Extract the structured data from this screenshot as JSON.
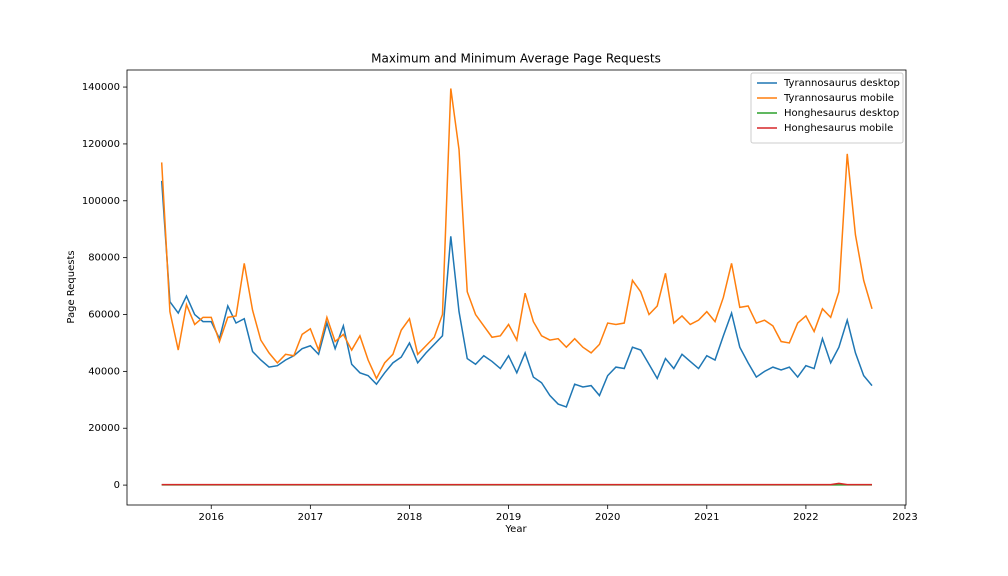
{
  "chart_data": {
    "type": "line",
    "title": "Maximum and Minimum Average Page Requests",
    "x_label": "Year",
    "y_label": "Page Requests",
    "x": [
      2015.5,
      2015.583,
      2015.667,
      2015.75,
      2015.833,
      2015.917,
      2016,
      2016.083,
      2016.167,
      2016.25,
      2016.333,
      2016.417,
      2016.5,
      2016.583,
      2016.667,
      2016.75,
      2016.833,
      2016.917,
      2017,
      2017.083,
      2017.167,
      2017.25,
      2017.333,
      2017.417,
      2017.5,
      2017.583,
      2017.667,
      2017.75,
      2017.833,
      2017.917,
      2018,
      2018.083,
      2018.167,
      2018.25,
      2018.333,
      2018.417,
      2018.5,
      2018.583,
      2018.667,
      2018.75,
      2018.833,
      2018.917,
      2019,
      2019.083,
      2019.167,
      2019.25,
      2019.333,
      2019.417,
      2019.5,
      2019.583,
      2019.667,
      2019.75,
      2019.833,
      2019.917,
      2020,
      2020.083,
      2020.167,
      2020.25,
      2020.333,
      2020.417,
      2020.5,
      2020.583,
      2020.667,
      2020.75,
      2020.833,
      2020.917,
      2021,
      2021.083,
      2021.167,
      2021.25,
      2021.333,
      2021.417,
      2021.5,
      2021.583,
      2021.667,
      2021.75,
      2021.833,
      2021.917,
      2022,
      2022.083,
      2022.167,
      2022.25,
      2022.333,
      2022.417,
      2022.5,
      2022.583,
      2022.667
    ],
    "series": [
      {
        "name": "Tyrannosaurus desktop",
        "color": "#1f77b4",
        "values": [
          107000,
          64500,
          60500,
          66500,
          60000,
          57500,
          57500,
          51500,
          63000,
          57000,
          58500,
          47000,
          44000,
          41500,
          42000,
          44000,
          45500,
          48000,
          49000,
          46000,
          57000,
          48000,
          56000,
          42500,
          39500,
          38500,
          35500,
          39500,
          43000,
          45000,
          50000,
          43000,
          46500,
          49500,
          52500,
          87500,
          61000,
          44500,
          42500,
          45500,
          43500,
          41000,
          45500,
          39500,
          46500,
          38000,
          36000,
          31500,
          28500,
          27500,
          35500,
          34500,
          35000,
          31500,
          38500,
          41500,
          41000,
          48500,
          47500,
          42500,
          37500,
          44500,
          41000,
          46000,
          43500,
          41000,
          45500,
          44000,
          52500,
          60500,
          48500,
          43000,
          38000,
          40000,
          41500,
          40500,
          41500,
          38000,
          42000,
          41000,
          51500,
          43000,
          48500,
          58000,
          46500,
          38500,
          35000
        ]
      },
      {
        "name": "Tyrannosaurus mobile",
        "color": "#ff7f0e",
        "values": [
          113500,
          61000,
          47500,
          63500,
          56500,
          59000,
          59000,
          50500,
          59000,
          59500,
          78000,
          61500,
          51000,
          46500,
          43000,
          46000,
          45500,
          53000,
          55000,
          47500,
          59000,
          50500,
          53000,
          47500,
          52500,
          44000,
          37500,
          43000,
          46000,
          54500,
          58500,
          46000,
          49000,
          52000,
          60000,
          139500,
          118000,
          68000,
          60000,
          56000,
          52000,
          52500,
          56500,
          51000,
          67500,
          57500,
          52500,
          51000,
          51500,
          48500,
          51500,
          48500,
          46500,
          49500,
          57000,
          56500,
          57000,
          72000,
          68000,
          60000,
          63000,
          74500,
          57000,
          59500,
          56500,
          58000,
          61000,
          57500,
          66000,
          78000,
          62500,
          63000,
          57000,
          58000,
          56000,
          50500,
          50000,
          57000,
          59500,
          54000,
          62000,
          59000,
          68000,
          116500,
          88000,
          72000,
          62000
        ]
      },
      {
        "name": "Honghesaurus desktop",
        "color": "#2ca02c",
        "values": [
          60,
          60,
          60,
          60,
          60,
          60,
          60,
          60,
          60,
          60,
          60,
          60,
          60,
          60,
          60,
          60,
          60,
          60,
          60,
          60,
          60,
          60,
          60,
          60,
          60,
          60,
          60,
          60,
          60,
          60,
          60,
          60,
          60,
          60,
          60,
          60,
          60,
          60,
          60,
          60,
          60,
          60,
          60,
          60,
          60,
          60,
          60,
          60,
          60,
          60,
          60,
          60,
          60,
          60,
          60,
          60,
          60,
          60,
          60,
          60,
          60,
          60,
          60,
          60,
          60,
          60,
          60,
          60,
          60,
          60,
          60,
          60,
          60,
          60,
          60,
          60,
          60,
          60,
          60,
          60,
          60,
          60,
          60,
          60,
          60,
          60,
          60
        ]
      },
      {
        "name": "Honghesaurus mobile",
        "color": "#d62728",
        "values": [
          150,
          150,
          150,
          150,
          150,
          150,
          150,
          150,
          150,
          150,
          150,
          150,
          150,
          150,
          150,
          150,
          150,
          150,
          150,
          150,
          150,
          150,
          150,
          150,
          150,
          150,
          150,
          150,
          150,
          150,
          150,
          150,
          150,
          150,
          150,
          150,
          150,
          150,
          150,
          150,
          150,
          150,
          150,
          150,
          150,
          150,
          150,
          150,
          150,
          150,
          150,
          150,
          150,
          150,
          150,
          150,
          150,
          150,
          150,
          150,
          150,
          150,
          150,
          150,
          150,
          150,
          150,
          150,
          150,
          150,
          150,
          150,
          150,
          150,
          150,
          150,
          150,
          150,
          150,
          150,
          150,
          150,
          600,
          150,
          150,
          150,
          150
        ]
      }
    ],
    "xlim": [
      2015.15,
      2023.01
    ],
    "xticks": [
      2016,
      2017,
      2018,
      2019,
      2020,
      2021,
      2022,
      2023
    ],
    "ylim": [
      -7000,
      146000
    ],
    "yticks": [
      0,
      20000,
      40000,
      60000,
      80000,
      100000,
      120000,
      140000
    ],
    "grid": false,
    "legend": "upper right"
  }
}
